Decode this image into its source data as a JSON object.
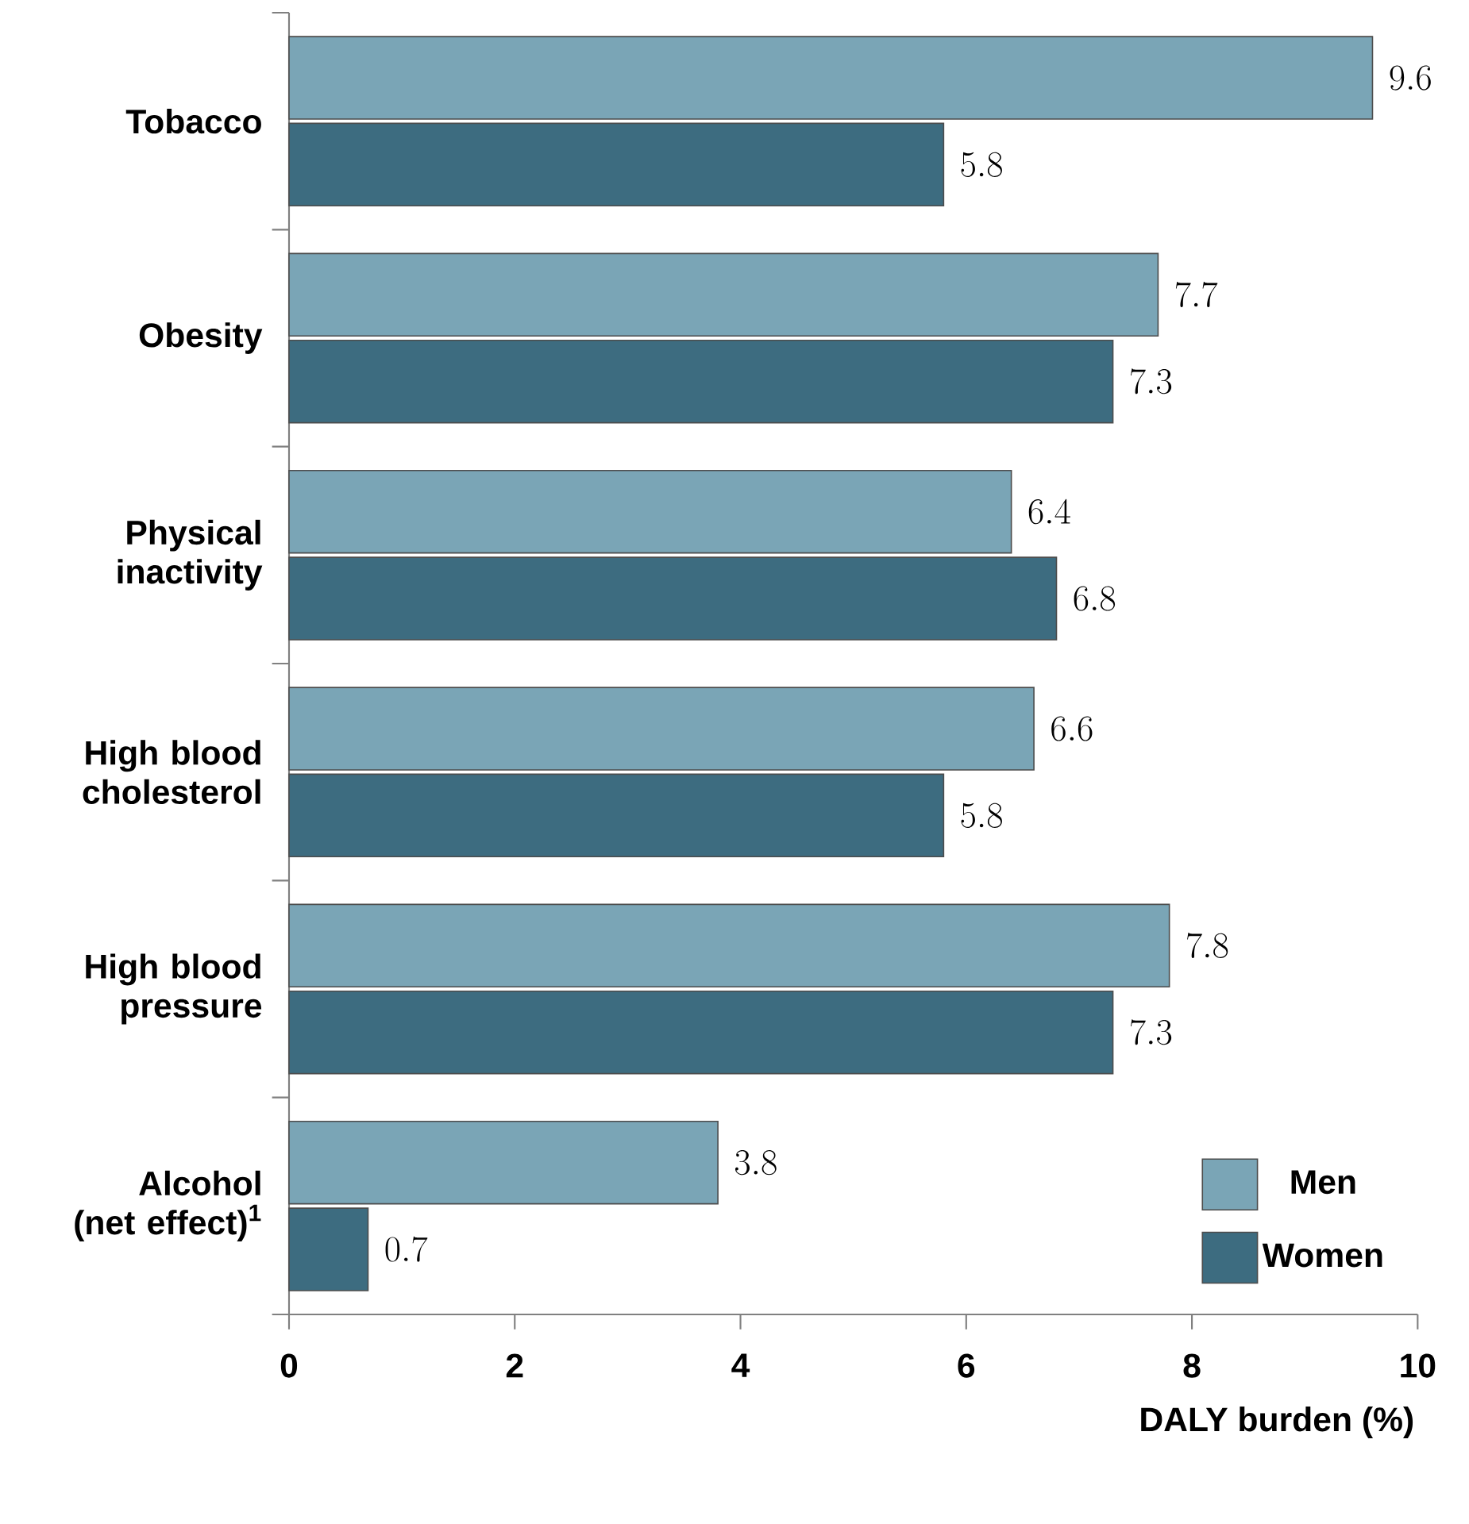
{
  "chart_data": {
    "type": "bar",
    "orientation": "horizontal",
    "categories": [
      "Tobacco",
      "Obesity",
      "Physical inactivity",
      "High blood cholesterol",
      "High blood pressure",
      "Alcohol (net effect)$^{1}$"
    ],
    "series": [
      {
        "name": "Men",
        "color": "#7aa5b6",
        "values": [
          9.6,
          7.7,
          6.4,
          6.6,
          7.8,
          3.8
        ]
      },
      {
        "name": "Women",
        "color": "#3d6c80",
        "values": [
          5.8,
          7.3,
          6.8,
          5.8,
          7.3,
          0.7
        ]
      }
    ],
    "xlabel": "DALY burden (%)",
    "xlim": [
      0,
      10
    ],
    "xticks": [
      0,
      2,
      4,
      6,
      8,
      10
    ],
    "data_labels": true,
    "legend": "bottom right"
  }
}
